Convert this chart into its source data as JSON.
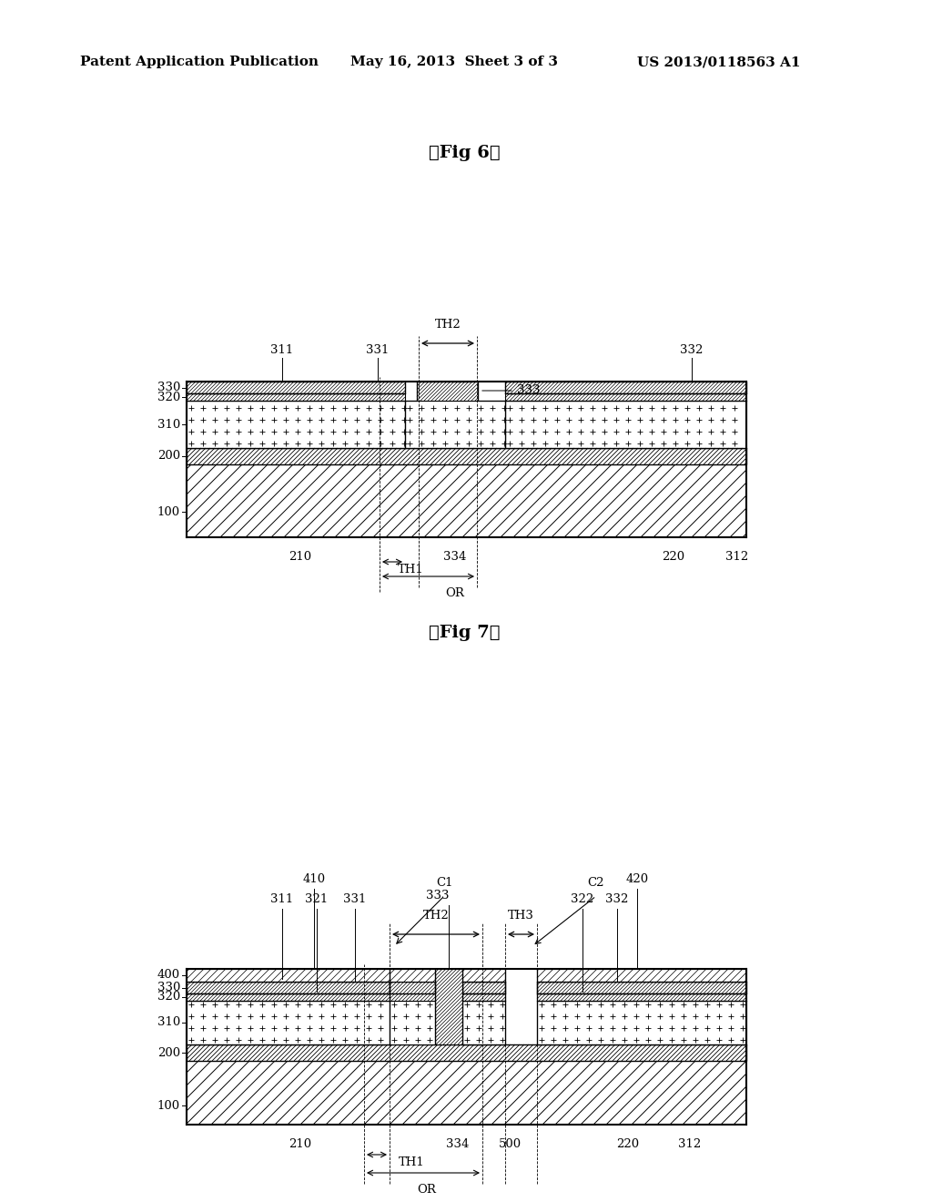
{
  "bg_color": "#ffffff",
  "header_left": "Patent Application Publication",
  "header_mid": "May 16, 2013  Sheet 3 of 3",
  "header_right": "US 2013/0118563 A1",
  "fig6_title": "【Fig 6】",
  "fig7_title": "【Fig 7】"
}
